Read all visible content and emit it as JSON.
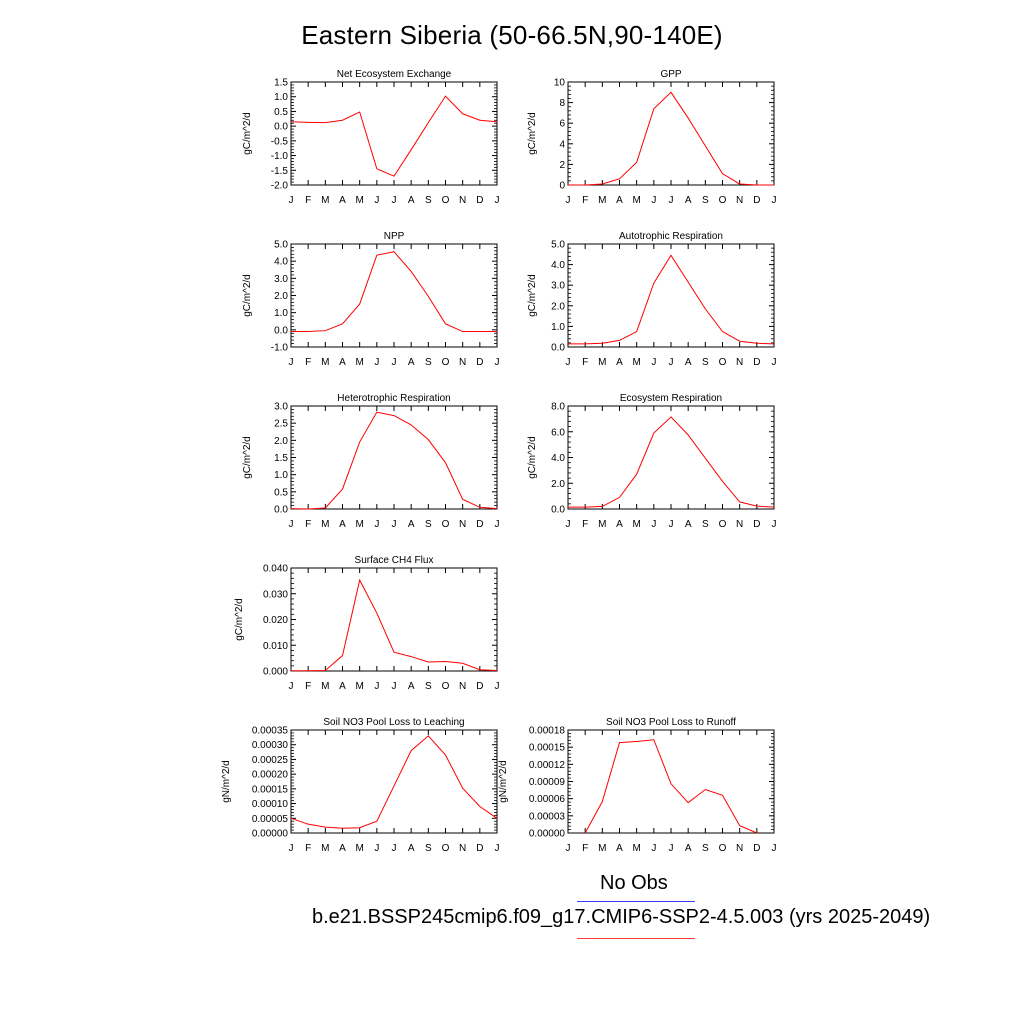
{
  "title": "Eastern Siberia (50-66.5N,90-140E)",
  "legend": {
    "obs_label": "No Obs",
    "model_label": "b.e21.BSSP245cmip6.f09_g17.CMIP6-SSP2-4.5.003 (yrs 2025-2049)",
    "obs_color": "#3c3cff",
    "model_color": "#ff0000"
  },
  "chart_data": [
    {
      "type": "line",
      "title": "Net Ecosystem Exchange",
      "ylabel": "gC/m^2/d",
      "x": [
        "J",
        "F",
        "M",
        "A",
        "M",
        "J",
        "J",
        "A",
        "S",
        "O",
        "N",
        "D",
        "J"
      ],
      "ylim": [
        -2.0,
        1.5
      ],
      "yticks": [
        -2.0,
        -1.5,
        -1.0,
        -0.5,
        0.0,
        0.5,
        1.0,
        1.5
      ],
      "ytick_labels": [
        "-2.0",
        "-1.5",
        "-1.0",
        "-0.5",
        "0.0",
        "0.5",
        "1.0",
        "1.5"
      ],
      "series": [
        {
          "values": [
            0.15,
            0.13,
            0.12,
            0.2,
            0.48,
            -1.45,
            -1.7,
            -0.8,
            0.12,
            1.02,
            0.42,
            0.2,
            0.15
          ]
        }
      ]
    },
    {
      "type": "line",
      "title": "GPP",
      "ylabel": "gC/m^2/d",
      "x": [
        "J",
        "F",
        "M",
        "A",
        "M",
        "J",
        "J",
        "A",
        "S",
        "O",
        "N",
        "D",
        "J"
      ],
      "ylim": [
        0,
        10
      ],
      "yticks": [
        0,
        2,
        4,
        6,
        8,
        10
      ],
      "ytick_labels": [
        "0",
        "2",
        "4",
        "6",
        "8",
        "10"
      ],
      "series": [
        {
          "values": [
            0.0,
            0.0,
            0.1,
            0.6,
            2.2,
            7.4,
            9.0,
            6.5,
            3.8,
            1.1,
            0.1,
            0.0,
            0.0
          ]
        }
      ]
    },
    {
      "type": "line",
      "title": "NPP",
      "ylabel": "gC/m^2/d",
      "x": [
        "J",
        "F",
        "M",
        "A",
        "M",
        "J",
        "J",
        "A",
        "S",
        "O",
        "N",
        "D",
        "J"
      ],
      "ylim": [
        -1.0,
        5.0
      ],
      "yticks": [
        -1,
        0,
        1,
        2,
        3,
        4,
        5
      ],
      "ytick_labels": [
        "-1.0",
        "0.0",
        "1.0",
        "2.0",
        "3.0",
        "4.0",
        "5.0"
      ],
      "series": [
        {
          "values": [
            -0.1,
            -0.1,
            -0.05,
            0.35,
            1.5,
            4.35,
            4.55,
            3.4,
            1.95,
            0.35,
            -0.1,
            -0.1,
            -0.1
          ]
        }
      ]
    },
    {
      "type": "line",
      "title": "Autotrophic Respiration",
      "ylabel": "gC/m^2/d",
      "x": [
        "J",
        "F",
        "M",
        "A",
        "M",
        "J",
        "J",
        "A",
        "S",
        "O",
        "N",
        "D",
        "J"
      ],
      "ylim": [
        0,
        5
      ],
      "yticks": [
        0,
        1,
        2,
        3,
        4,
        5
      ],
      "ytick_labels": [
        "0.0",
        "1.0",
        "2.0",
        "3.0",
        "4.0",
        "5.0"
      ],
      "series": [
        {
          "values": [
            0.15,
            0.15,
            0.18,
            0.32,
            0.75,
            3.1,
            4.45,
            3.15,
            1.85,
            0.75,
            0.28,
            0.18,
            0.15
          ]
        }
      ]
    },
    {
      "type": "line",
      "title": "Heterotrophic Respiration",
      "ylabel": "gC/m^2/d",
      "x": [
        "J",
        "F",
        "M",
        "A",
        "M",
        "J",
        "J",
        "A",
        "S",
        "O",
        "N",
        "D",
        "J"
      ],
      "ylim": [
        0,
        3
      ],
      "yticks": [
        0,
        0.5,
        1,
        1.5,
        2,
        2.5,
        3
      ],
      "ytick_labels": [
        "0.0",
        "0.5",
        "1.0",
        "1.5",
        "2.0",
        "2.5",
        "3.0"
      ],
      "series": [
        {
          "values": [
            0.01,
            0.0,
            0.03,
            0.58,
            1.95,
            2.82,
            2.72,
            2.45,
            2.02,
            1.35,
            0.28,
            0.05,
            0.01
          ]
        }
      ]
    },
    {
      "type": "line",
      "title": "Ecosystem Respiration",
      "ylabel": "gC/m^2/d",
      "x": [
        "J",
        "F",
        "M",
        "A",
        "M",
        "J",
        "J",
        "A",
        "S",
        "O",
        "N",
        "D",
        "J"
      ],
      "ylim": [
        0,
        8
      ],
      "yticks": [
        0,
        2,
        4,
        6,
        8
      ],
      "ytick_labels": [
        "0.0",
        "2.0",
        "4.0",
        "6.0",
        "8.0"
      ],
      "series": [
        {
          "values": [
            0.15,
            0.15,
            0.2,
            0.9,
            2.7,
            5.9,
            7.15,
            5.75,
            3.95,
            2.15,
            0.55,
            0.22,
            0.15
          ]
        }
      ]
    },
    {
      "type": "line",
      "title": "Surface CH4 Flux",
      "ylabel": "gC/m^2/d",
      "x": [
        "J",
        "F",
        "M",
        "A",
        "M",
        "J",
        "J",
        "A",
        "S",
        "O",
        "N",
        "D",
        "J"
      ],
      "ylim": [
        0,
        0.04
      ],
      "yticks": [
        0,
        0.01,
        0.02,
        0.03,
        0.04
      ],
      "ytick_labels": [
        "0.000",
        "0.010",
        "0.020",
        "0.030",
        "0.040"
      ],
      "series": [
        {
          "values": [
            0.0001,
            0.0001,
            0.0002,
            0.006,
            0.0353,
            0.0225,
            0.0073,
            0.0056,
            0.0035,
            0.0037,
            0.003,
            0.0005,
            0.0002
          ]
        }
      ]
    },
    {
      "type": "line",
      "title": "Soil NO3 Pool Loss to Leaching",
      "ylabel": "gN/m^2/d",
      "x": [
        "J",
        "F",
        "M",
        "A",
        "M",
        "J",
        "J",
        "A",
        "S",
        "O",
        "N",
        "D",
        "J"
      ],
      "ylim": [
        0,
        0.00035
      ],
      "yticks": [
        0,
        5e-05,
        0.0001,
        0.00015,
        0.0002,
        0.00025,
        0.0003,
        0.00035
      ],
      "ytick_labels": [
        "0.00000",
        "0.00005",
        "0.00010",
        "0.00015",
        "0.00020",
        "0.00025",
        "0.00030",
        "0.00035"
      ],
      "series": [
        {
          "values": [
            5e-05,
            3e-05,
            2e-05,
            1.6e-05,
            1.8e-05,
            4e-05,
            0.00016,
            0.00028,
            0.00033,
            0.000265,
            0.000152,
            9e-05,
            5e-05
          ]
        }
      ]
    },
    {
      "type": "line",
      "title": "Soil NO3 Pool Loss to Runoff",
      "ylabel": "gN/m^2/d",
      "x": [
        "J",
        "F",
        "M",
        "A",
        "M",
        "J",
        "J",
        "A",
        "S",
        "O",
        "N",
        "D",
        "J"
      ],
      "ylim": [
        0,
        0.00018
      ],
      "yticks": [
        0,
        3e-05,
        6e-05,
        9e-05,
        0.00012,
        0.00015,
        0.00018
      ],
      "ytick_labels": [
        "0.00000",
        "0.00003",
        "0.00006",
        "0.00009",
        "0.00012",
        "0.00015",
        "0.00018"
      ],
      "series": [
        {
          "values": [
            null,
            0.0,
            5.5e-05,
            0.000158,
            0.00016,
            0.000163,
            8.6e-05,
            5.3e-05,
            7.6e-05,
            6.6e-05,
            1.3e-05,
            0.0,
            null
          ]
        }
      ]
    }
  ]
}
